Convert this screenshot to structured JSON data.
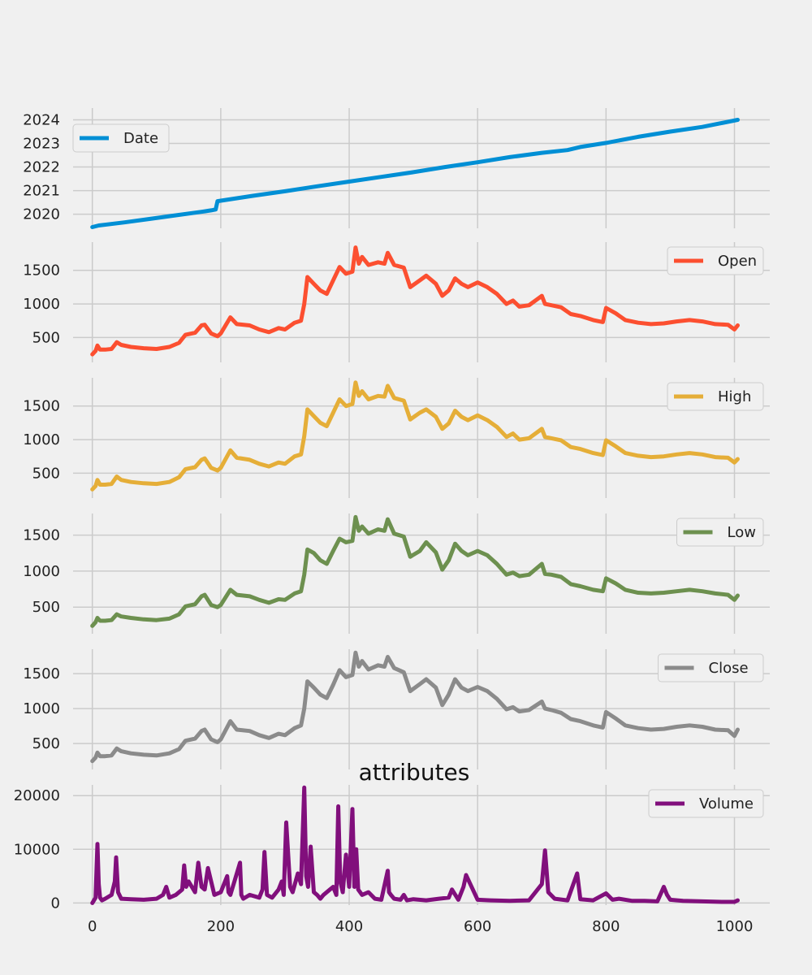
{
  "chart_data": [
    {
      "type": "line",
      "name": "date-panel",
      "legend": "Date",
      "color": "#008fd5",
      "legend_loc": "upper-left",
      "xlim": [
        -30,
        1055
      ],
      "ylim": [
        2019.4,
        2024.5
      ],
      "x_ticks": [
        0,
        200,
        400,
        600,
        800,
        1000
      ],
      "y_ticks": [
        2020,
        2021,
        2022,
        2023,
        2024
      ],
      "y_tick_labels": [
        "2020",
        "2021",
        "2022",
        "2023",
        "2024"
      ],
      "x": [
        0,
        10,
        50,
        90,
        130,
        170,
        185,
        192,
        195,
        250,
        300,
        350,
        400,
        450,
        500,
        550,
        600,
        650,
        700,
        740,
        760,
        800,
        850,
        900,
        950,
        1005
      ],
      "y": [
        2019.45,
        2019.52,
        2019.65,
        2019.8,
        2019.95,
        2020.1,
        2020.16,
        2020.2,
        2020.55,
        2020.78,
        2020.97,
        2021.18,
        2021.38,
        2021.58,
        2021.78,
        2022.0,
        2022.2,
        2022.42,
        2022.6,
        2022.72,
        2022.85,
        2023.02,
        2023.28,
        2023.5,
        2023.7,
        2024.0
      ]
    },
    {
      "type": "line",
      "name": "open-panel",
      "legend": "Open",
      "color": "#fc4f30",
      "legend_loc": "upper-right",
      "xlim": [
        -30,
        1055
      ],
      "ylim": [
        130,
        1920
      ],
      "x_ticks": [
        0,
        200,
        400,
        600,
        800,
        1000
      ],
      "y_ticks": [
        500,
        1000,
        1500
      ],
      "y_tick_labels": [
        "500",
        "1000",
        "1500"
      ],
      "x": [
        0,
        5,
        8,
        12,
        20,
        30,
        38,
        45,
        60,
        80,
        100,
        120,
        135,
        145,
        160,
        170,
        175,
        185,
        195,
        200,
        215,
        225,
        245,
        260,
        275,
        290,
        300,
        315,
        325,
        330,
        335,
        345,
        355,
        365,
        375,
        385,
        395,
        405,
        410,
        415,
        420,
        430,
        445,
        455,
        460,
        470,
        485,
        495,
        510,
        520,
        535,
        545,
        555,
        565,
        575,
        585,
        600,
        615,
        630,
        645,
        655,
        665,
        680,
        700,
        705,
        715,
        730,
        745,
        760,
        780,
        795,
        800,
        815,
        830,
        850,
        870,
        890,
        910,
        930,
        950,
        970,
        990,
        1000,
        1005
      ],
      "y": [
        250,
        300,
        380,
        320,
        320,
        330,
        430,
        390,
        360,
        340,
        330,
        360,
        420,
        540,
        570,
        680,
        690,
        560,
        520,
        560,
        800,
        700,
        680,
        620,
        580,
        640,
        620,
        720,
        750,
        1000,
        1400,
        1300,
        1200,
        1150,
        1350,
        1550,
        1450,
        1480,
        1840,
        1600,
        1700,
        1580,
        1620,
        1600,
        1760,
        1580,
        1540,
        1250,
        1350,
        1420,
        1300,
        1120,
        1200,
        1380,
        1300,
        1250,
        1320,
        1250,
        1150,
        1000,
        1050,
        960,
        980,
        1120,
        1000,
        980,
        950,
        850,
        820,
        760,
        730,
        940,
        860,
        760,
        720,
        700,
        710,
        740,
        760,
        740,
        700,
        690,
        620,
        680
      ]
    },
    {
      "type": "line",
      "name": "high-panel",
      "legend": "High",
      "color": "#e5ae38",
      "legend_loc": "upper-right",
      "xlim": [
        -30,
        1055
      ],
      "ylim": [
        130,
        1920
      ],
      "x_ticks": [
        0,
        200,
        400,
        600,
        800,
        1000
      ],
      "y_ticks": [
        500,
        1000,
        1500
      ],
      "y_tick_labels": [
        "500",
        "1000",
        "1500"
      ],
      "x": [
        0,
        5,
        8,
        12,
        20,
        30,
        38,
        45,
        60,
        80,
        100,
        120,
        135,
        145,
        160,
        170,
        175,
        185,
        195,
        200,
        215,
        225,
        245,
        260,
        275,
        290,
        300,
        315,
        325,
        330,
        335,
        345,
        355,
        365,
        375,
        385,
        395,
        405,
        410,
        415,
        420,
        430,
        445,
        455,
        460,
        470,
        485,
        495,
        510,
        520,
        535,
        545,
        555,
        565,
        575,
        585,
        600,
        615,
        630,
        645,
        655,
        665,
        680,
        700,
        705,
        715,
        730,
        745,
        760,
        780,
        795,
        800,
        815,
        830,
        850,
        870,
        890,
        910,
        930,
        950,
        970,
        990,
        1000,
        1005
      ],
      "y": [
        260,
        310,
        400,
        330,
        330,
        340,
        450,
        400,
        370,
        350,
        340,
        370,
        440,
        560,
        590,
        700,
        720,
        580,
        540,
        580,
        840,
        730,
        700,
        640,
        600,
        660,
        640,
        750,
        780,
        1050,
        1450,
        1350,
        1250,
        1200,
        1400,
        1600,
        1500,
        1530,
        1850,
        1650,
        1720,
        1600,
        1650,
        1640,
        1800,
        1620,
        1580,
        1300,
        1400,
        1450,
        1340,
        1160,
        1240,
        1430,
        1340,
        1290,
        1360,
        1290,
        1190,
        1040,
        1090,
        1000,
        1020,
        1160,
        1040,
        1020,
        990,
        890,
        860,
        800,
        770,
        990,
        900,
        800,
        760,
        740,
        750,
        780,
        800,
        780,
        740,
        730,
        660,
        710
      ]
    },
    {
      "type": "line",
      "name": "low-panel",
      "legend": "Low",
      "color": "#6d904f",
      "legend_loc": "upper-right",
      "xlim": [
        -30,
        1055
      ],
      "ylim": [
        130,
        1800
      ],
      "x_ticks": [
        0,
        200,
        400,
        600,
        800,
        1000
      ],
      "y_ticks": [
        500,
        1000,
        1500
      ],
      "y_tick_labels": [
        "500",
        "1000",
        "1500"
      ],
      "x": [
        0,
        5,
        8,
        12,
        20,
        30,
        38,
        45,
        60,
        80,
        100,
        120,
        135,
        145,
        160,
        170,
        175,
        185,
        195,
        200,
        215,
        225,
        245,
        260,
        275,
        290,
        300,
        315,
        325,
        330,
        335,
        345,
        355,
        365,
        375,
        385,
        395,
        405,
        410,
        415,
        420,
        430,
        445,
        455,
        460,
        470,
        485,
        495,
        510,
        520,
        535,
        545,
        555,
        565,
        575,
        585,
        600,
        615,
        630,
        645,
        655,
        665,
        680,
        700,
        705,
        715,
        730,
        745,
        760,
        780,
        795,
        800,
        815,
        830,
        850,
        870,
        890,
        910,
        930,
        950,
        970,
        990,
        1000,
        1005
      ],
      "y": [
        240,
        290,
        350,
        310,
        310,
        320,
        400,
        370,
        350,
        330,
        320,
        340,
        400,
        510,
        540,
        650,
        670,
        530,
        500,
        530,
        740,
        670,
        650,
        600,
        560,
        610,
        600,
        690,
        720,
        950,
        1300,
        1250,
        1150,
        1100,
        1280,
        1450,
        1400,
        1420,
        1750,
        1560,
        1620,
        1520,
        1580,
        1560,
        1720,
        1520,
        1480,
        1200,
        1280,
        1400,
        1260,
        1020,
        1150,
        1380,
        1280,
        1220,
        1280,
        1220,
        1100,
        950,
        980,
        930,
        950,
        1100,
        960,
        950,
        920,
        820,
        790,
        740,
        720,
        900,
        830,
        740,
        700,
        690,
        700,
        720,
        740,
        720,
        690,
        670,
        600,
        660
      ]
    },
    {
      "type": "line",
      "name": "close-panel",
      "legend": "Close",
      "color": "#8b8b8b",
      "legend_loc": "upper-right",
      "xlim": [
        -30,
        1055
      ],
      "ylim": [
        130,
        1850
      ],
      "x_ticks": [
        0,
        200,
        400,
        600,
        800,
        1000
      ],
      "y_ticks": [
        500,
        1000,
        1500
      ],
      "y_tick_labels": [
        "500",
        "1000",
        "1500"
      ],
      "x": [
        0,
        5,
        8,
        12,
        20,
        30,
        38,
        45,
        60,
        80,
        100,
        120,
        135,
        145,
        160,
        170,
        175,
        185,
        195,
        200,
        215,
        225,
        245,
        260,
        275,
        290,
        300,
        315,
        325,
        330,
        335,
        345,
        355,
        365,
        375,
        385,
        395,
        405,
        410,
        415,
        420,
        430,
        445,
        455,
        460,
        470,
        485,
        495,
        510,
        520,
        535,
        545,
        555,
        565,
        575,
        585,
        600,
        615,
        630,
        645,
        655,
        665,
        680,
        700,
        705,
        715,
        730,
        745,
        760,
        780,
        795,
        800,
        815,
        830,
        850,
        870,
        890,
        910,
        930,
        950,
        970,
        990,
        1000,
        1005
      ],
      "y": [
        250,
        300,
        370,
        320,
        320,
        330,
        430,
        390,
        360,
        340,
        330,
        360,
        420,
        540,
        570,
        680,
        700,
        560,
        520,
        560,
        820,
        700,
        680,
        620,
        580,
        640,
        620,
        720,
        760,
        1000,
        1390,
        1300,
        1200,
        1150,
        1340,
        1550,
        1450,
        1480,
        1800,
        1600,
        1680,
        1560,
        1620,
        1600,
        1740,
        1580,
        1520,
        1250,
        1350,
        1420,
        1300,
        1050,
        1200,
        1420,
        1300,
        1250,
        1310,
        1250,
        1140,
        990,
        1020,
        960,
        980,
        1100,
        1000,
        980,
        940,
        850,
        820,
        760,
        730,
        950,
        860,
        760,
        720,
        700,
        710,
        740,
        760,
        740,
        700,
        690,
        610,
        700
      ]
    },
    {
      "type": "line",
      "name": "volume-panel",
      "title": "attributes",
      "legend": "Volume",
      "color": "#810f7c",
      "legend_loc": "upper-right",
      "xlim": [
        -30,
        1055
      ],
      "ylim": [
        -400,
        22000
      ],
      "x_ticks": [
        0,
        200,
        400,
        600,
        800,
        1000
      ],
      "x_tick_labels": [
        "0",
        "200",
        "400",
        "600",
        "800",
        "1000"
      ],
      "y_ticks": [
        0,
        10000,
        20000
      ],
      "y_tick_labels": [
        "0",
        "10000",
        "20000"
      ],
      "x": [
        0,
        5,
        8,
        10,
        12,
        15,
        20,
        30,
        35,
        37,
        40,
        45,
        60,
        80,
        100,
        110,
        115,
        120,
        130,
        140,
        143,
        146,
        150,
        160,
        165,
        170,
        175,
        180,
        190,
        200,
        210,
        212,
        215,
        220,
        230,
        232,
        235,
        245,
        260,
        265,
        268,
        272,
        280,
        290,
        295,
        298,
        302,
        308,
        312,
        320,
        325,
        330,
        333,
        336,
        340,
        345,
        350,
        355,
        360,
        370,
        375,
        380,
        383,
        386,
        390,
        395,
        400,
        405,
        408,
        411,
        414,
        420,
        430,
        440,
        450,
        460,
        462,
        465,
        470,
        480,
        485,
        490,
        500,
        520,
        540,
        555,
        560,
        570,
        578,
        582,
        600,
        620,
        650,
        680,
        700,
        705,
        710,
        720,
        740,
        755,
        760,
        780,
        800,
        810,
        820,
        840,
        860,
        880,
        890,
        895,
        900,
        920,
        950,
        980,
        1000,
        1005
      ],
      "y": [
        0,
        1000,
        11000,
        3500,
        1000,
        500,
        800,
        1500,
        4000,
        8500,
        2000,
        800,
        700,
        600,
        800,
        1500,
        3000,
        1000,
        1500,
        2500,
        7000,
        3000,
        4000,
        2000,
        7500,
        3000,
        2500,
        6500,
        1500,
        2000,
        5000,
        2000,
        1500,
        3500,
        7500,
        1500,
        800,
        1500,
        1000,
        2500,
        9500,
        1500,
        1000,
        2500,
        4000,
        1500,
        15000,
        3000,
        2000,
        5500,
        3500,
        21500,
        5000,
        3000,
        10500,
        2000,
        1500,
        800,
        1500,
        2500,
        3000,
        1500,
        18000,
        4000,
        2000,
        9000,
        3000,
        17500,
        3000,
        10000,
        2500,
        1500,
        2000,
        800,
        600,
        6000,
        2000,
        1500,
        800,
        600,
        1500,
        500,
        700,
        500,
        800,
        1000,
        2500,
        600,
        3000,
        5200,
        600,
        500,
        400,
        500,
        3500,
        9800,
        2000,
        800,
        500,
        5500,
        700,
        500,
        1800,
        600,
        800,
        400,
        400,
        300,
        3000,
        1500,
        600,
        400,
        300,
        200,
        200,
        500
      ]
    }
  ]
}
